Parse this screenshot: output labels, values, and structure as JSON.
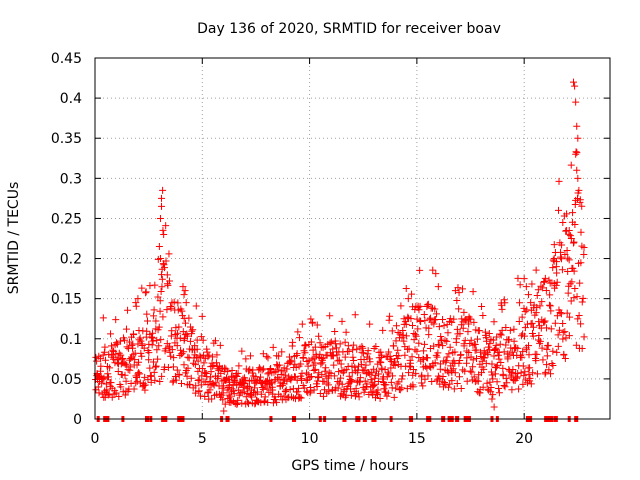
{
  "chart_data": {
    "type": "scatter",
    "title": "Day 136 of 2020, SRMTID for receiver boav",
    "xlabel": "GPS time / hours",
    "ylabel": "SRMTID / TECUs",
    "xlim": [
      0,
      24
    ],
    "ylim": [
      0,
      0.45
    ],
    "grid": true,
    "marker": "+",
    "color": "#ff0000",
    "x_ticks": [
      0,
      5,
      10,
      15,
      20
    ],
    "x_tick_labels": [
      "0",
      "5",
      "10",
      "15",
      "20"
    ],
    "y_ticks": [
      0,
      0.05,
      0.1,
      0.15,
      0.2,
      0.25,
      0.3,
      0.35,
      0.4,
      0.45
    ],
    "y_tick_labels": [
      "0",
      "0.05",
      "0.1",
      "0.15",
      "0.2",
      "0.25",
      "0.3",
      "0.35",
      "0.4",
      "0.45"
    ],
    "trend_knots": {
      "x": [
        0.0,
        0.5,
        1.0,
        1.5,
        2.0,
        2.5,
        3.0,
        3.2,
        3.5,
        4.0,
        4.5,
        5.0,
        5.5,
        6.0,
        7.0,
        8.0,
        9.0,
        9.5,
        10.0,
        11.0,
        12.0,
        13.0,
        14.0,
        14.5,
        15.0,
        15.5,
        16.0,
        16.5,
        17.0,
        17.5,
        18.0,
        18.5,
        19.0,
        19.5,
        20.0,
        20.5,
        21.0,
        21.5,
        22.0,
        22.5,
        22.8
      ],
      "y": [
        0.05,
        0.06,
        0.06,
        0.065,
        0.07,
        0.085,
        0.1,
        0.13,
        0.1,
        0.09,
        0.07,
        0.06,
        0.05,
        0.04,
        0.04,
        0.04,
        0.045,
        0.055,
        0.06,
        0.06,
        0.06,
        0.055,
        0.06,
        0.08,
        0.09,
        0.09,
        0.085,
        0.08,
        0.08,
        0.08,
        0.07,
        0.065,
        0.07,
        0.075,
        0.09,
        0.1,
        0.11,
        0.14,
        0.15,
        0.18,
        0.17
      ]
    },
    "spike_points": {
      "x": [
        3.0,
        3.05,
        3.1,
        3.1,
        3.15,
        3.2,
        3.05,
        3.1,
        4.1,
        4.2,
        4.15,
        4.25,
        22.3,
        22.35,
        22.4,
        22.45,
        22.5,
        22.4,
        22.45,
        22.5,
        22.55,
        22.6,
        21.6,
        21.8,
        22.1,
        22.2,
        22.0,
        21.4,
        21.5,
        16.0,
        14.6,
        14.8,
        20.0,
        20.1,
        20.2,
        18.5,
        18.6,
        6.0,
        1.9,
        2.0
      ],
      "y": [
        0.215,
        0.25,
        0.265,
        0.275,
        0.285,
        0.23,
        0.2,
        0.18,
        0.165,
        0.16,
        0.155,
        0.145,
        0.42,
        0.415,
        0.395,
        0.365,
        0.35,
        0.33,
        0.31,
        0.3,
        0.285,
        0.27,
        0.26,
        0.245,
        0.235,
        0.225,
        0.21,
        0.2,
        0.19,
        0.165,
        0.15,
        0.14,
        0.175,
        0.165,
        0.155,
        0.025,
        0.015,
        0.01,
        0.145,
        0.15
      ]
    },
    "zero_points_x": [
      0.15,
      0.45,
      0.5,
      0.55,
      0.6,
      1.3,
      2.4,
      2.45,
      2.6,
      3.15,
      3.2,
      3.25,
      3.3,
      3.9,
      4.0,
      4.1,
      5.9,
      6.15,
      6.2,
      8.2,
      9.25,
      9.3,
      10.5,
      10.7,
      11.6,
      11.65,
      12.2,
      12.25,
      12.3,
      12.55,
      12.6,
      12.95,
      13.05,
      13.8,
      14.7,
      14.75,
      15.5,
      15.6,
      16.2,
      16.25,
      16.5,
      16.55,
      16.6,
      16.65,
      16.85,
      16.9,
      17.25,
      17.35,
      17.45,
      18.5,
      18.75,
      20.15,
      20.2,
      20.25,
      20.3,
      21.0,
      21.05,
      21.1,
      21.2,
      21.25,
      21.3,
      21.45,
      21.5,
      22.1,
      22.4,
      22.45
    ]
  }
}
